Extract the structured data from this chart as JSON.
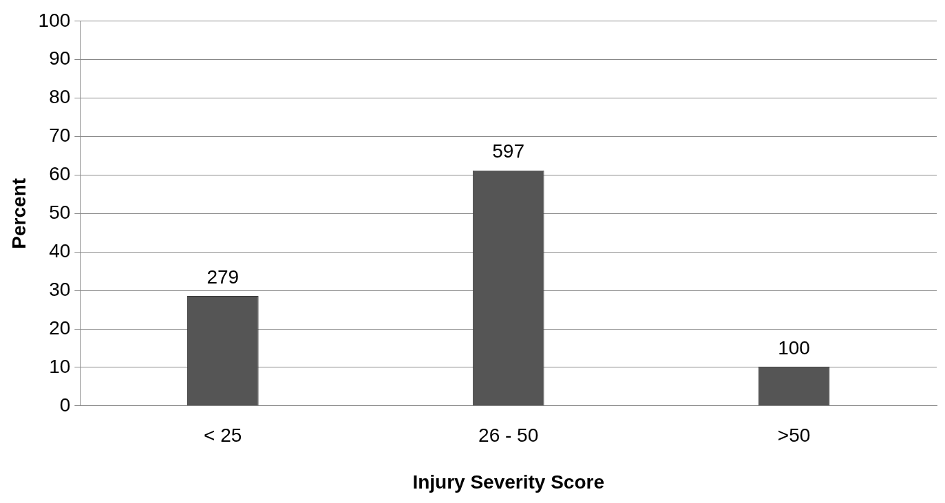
{
  "chart_data": {
    "type": "bar",
    "xlabel": "Injury Severity Score",
    "ylabel": "Percent",
    "categories": [
      "< 25",
      "26 - 50",
      ">50"
    ],
    "values": [
      28.6,
      61.2,
      10.2
    ],
    "annotations": [
      {
        "text": "279",
        "x": "< 25",
        "y": 28.6
      },
      {
        "text": "597",
        "x": "26 - 50",
        "y": 61.2
      },
      {
        "text": "100",
        "x": ">50",
        "y": 10.2
      }
    ],
    "color": "#555555",
    "ylim": [
      0,
      100
    ],
    "yticks": [
      0,
      10,
      20,
      30,
      40,
      50,
      60,
      70,
      80,
      90,
      100
    ],
    "grid": "y",
    "legend": false
  }
}
